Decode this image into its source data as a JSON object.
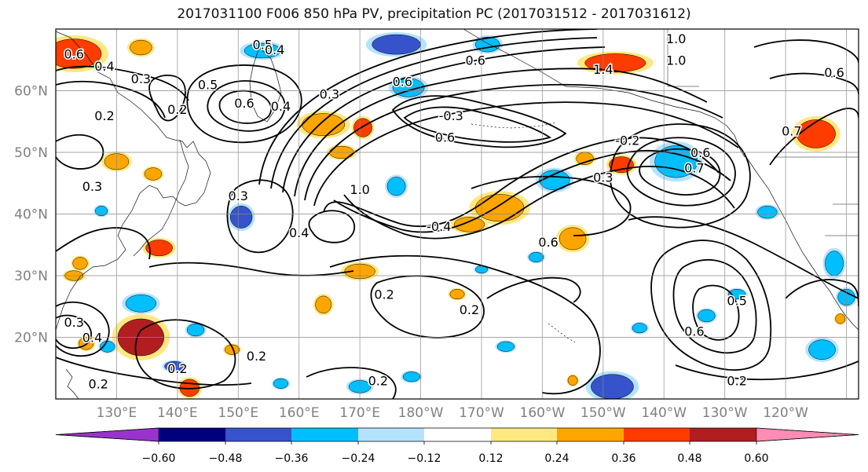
{
  "title": "2017031100 F006 850 hPa PV, precipitation PC (2017031512 - 2017031612)",
  "map": {
    "lat_labels": [
      "60°N",
      "50°N",
      "40°N",
      "30°N",
      "20°N"
    ],
    "lat_values": [
      60,
      50,
      40,
      30,
      20
    ],
    "lon_labels": [
      "130°E",
      "140°E",
      "150°E",
      "160°E",
      "170°E",
      "180°W",
      "170°W",
      "160°W",
      "150°W",
      "140°W",
      "130°W",
      "120°W"
    ],
    "lon_values": [
      130,
      140,
      150,
      160,
      170,
      180,
      190,
      200,
      210,
      220,
      230,
      240
    ],
    "extent": {
      "lon_min": 120,
      "lon_max": 252,
      "lat_min": 10,
      "lat_max": 70
    },
    "contour_labels": [
      {
        "text": "0.6",
        "lon": 123,
        "lat": 66
      },
      {
        "text": "0.4",
        "lon": 128,
        "lat": 64
      },
      {
        "text": "0.3",
        "lon": 134,
        "lat": 62
      },
      {
        "text": "0.5",
        "lon": 154,
        "lat": 67.5
      },
      {
        "text": "0.4",
        "lon": 156,
        "lat": 66.7
      },
      {
        "text": "0.5",
        "lon": 145,
        "lat": 61
      },
      {
        "text": "0.2",
        "lon": 140,
        "lat": 57
      },
      {
        "text": "0.2",
        "lon": 128,
        "lat": 56
      },
      {
        "text": "0.6",
        "lon": 151,
        "lat": 58
      },
      {
        "text": "0.4",
        "lon": 157,
        "lat": 57.5
      },
      {
        "text": "0.3",
        "lon": 165,
        "lat": 59.5
      },
      {
        "text": "0.6",
        "lon": 177,
        "lat": 61.5
      },
      {
        "text": "-0.3",
        "lon": 185,
        "lat": 56
      },
      {
        "text": "0.6",
        "lon": 184,
        "lat": 52.5
      },
      {
        "text": "0.6",
        "lon": 189,
        "lat": 65
      },
      {
        "text": "-0.2",
        "lon": 214,
        "lat": 52
      },
      {
        "text": "1.4",
        "lon": 210,
        "lat": 63.5
      },
      {
        "text": "1.0",
        "lon": 222,
        "lat": 68.5
      },
      {
        "text": "1.0",
        "lon": 222,
        "lat": 65
      },
      {
        "text": "0.6",
        "lon": 226,
        "lat": 50
      },
      {
        "text": "0.7",
        "lon": 225,
        "lat": 47.5
      },
      {
        "text": "0.3",
        "lon": 210,
        "lat": 46
      },
      {
        "text": "0.7",
        "lon": 241,
        "lat": 53.5
      },
      {
        "text": "0.6",
        "lon": 248,
        "lat": 63
      },
      {
        "text": "0.3",
        "lon": 126,
        "lat": 44.5
      },
      {
        "text": "0.3",
        "lon": 150,
        "lat": 43
      },
      {
        "text": "1.0",
        "lon": 170,
        "lat": 44
      },
      {
        "text": "0.4",
        "lon": 160,
        "lat": 37
      },
      {
        "text": "-0.4",
        "lon": 183,
        "lat": 38
      },
      {
        "text": "0.6",
        "lon": 201,
        "lat": 35.5
      },
      {
        "text": "0.3",
        "lon": 123,
        "lat": 22.5
      },
      {
        "text": "0.4",
        "lon": 126,
        "lat": 20
      },
      {
        "text": "0.2",
        "lon": 140,
        "lat": 15
      },
      {
        "text": "0.2",
        "lon": 127,
        "lat": 12.5
      },
      {
        "text": "0.2",
        "lon": 153,
        "lat": 17
      },
      {
        "text": "0.2",
        "lon": 174,
        "lat": 27
      },
      {
        "text": "0.2",
        "lon": 188,
        "lat": 24.5
      },
      {
        "text": "0.2",
        "lon": 173,
        "lat": 13
      },
      {
        "text": "0.5",
        "lon": 232,
        "lat": 26
      },
      {
        "text": "0.6",
        "lon": 225,
        "lat": 21
      },
      {
        "text": "0.2",
        "lon": 232,
        "lat": 13
      }
    ],
    "shaded_regions": [
      {
        "lon": 123,
        "lat": 66,
        "rx": 4.5,
        "ry": 2.4,
        "value": 0.45
      },
      {
        "lon": 134,
        "lat": 67,
        "rx": 1.8,
        "ry": 1.2,
        "value": 0.3
      },
      {
        "lon": 154,
        "lat": 66.5,
        "rx": 3,
        "ry": 1.2,
        "value": -0.3
      },
      {
        "lon": 176,
        "lat": 67.5,
        "rx": 4,
        "ry": 1.6,
        "value": -0.4
      },
      {
        "lon": 178,
        "lat": 60.5,
        "rx": 2.6,
        "ry": 1.5,
        "value": -0.3
      },
      {
        "lon": 191,
        "lat": 67.5,
        "rx": 2,
        "ry": 1.2,
        "value": -0.3
      },
      {
        "lon": 212,
        "lat": 64.5,
        "rx": 5,
        "ry": 1.5,
        "value": 0.4
      },
      {
        "lon": 164,
        "lat": 54.5,
        "rx": 3.5,
        "ry": 1.8,
        "value": 0.35
      },
      {
        "lon": 170.5,
        "lat": 54,
        "rx": 1.5,
        "ry": 1.5,
        "value": 0.4
      },
      {
        "lon": 222,
        "lat": 48.5,
        "rx": 3.5,
        "ry": 2.6,
        "value": -0.3
      },
      {
        "lon": 213,
        "lat": 48,
        "rx": 2,
        "ry": 1.3,
        "value": 0.45
      },
      {
        "lon": 202,
        "lat": 45.5,
        "rx": 2.5,
        "ry": 1.6,
        "value": -0.3
      },
      {
        "lon": 193,
        "lat": 41,
        "rx": 4,
        "ry": 2.2,
        "value": 0.35
      },
      {
        "lon": 188,
        "lat": 38.3,
        "rx": 2.5,
        "ry": 1.2,
        "value": 0.35
      },
      {
        "lon": 205,
        "lat": 36,
        "rx": 2.2,
        "ry": 1.8,
        "value": 0.35
      },
      {
        "lon": 150.5,
        "lat": 39.5,
        "rx": 1.8,
        "ry": 1.8,
        "value": -0.4
      },
      {
        "lon": 176,
        "lat": 44.5,
        "rx": 1.5,
        "ry": 1.5,
        "value": -0.3
      },
      {
        "lon": 207,
        "lat": 49,
        "rx": 1.4,
        "ry": 1,
        "value": 0.3
      },
      {
        "lon": 130,
        "lat": 48.5,
        "rx": 2,
        "ry": 1.3,
        "value": 0.3
      },
      {
        "lon": 136,
        "lat": 46.5,
        "rx": 1.4,
        "ry": 1,
        "value": 0.3
      },
      {
        "lon": 137,
        "lat": 34.5,
        "rx": 2.2,
        "ry": 1.3,
        "value": 0.4
      },
      {
        "lon": 124,
        "lat": 32,
        "rx": 1.2,
        "ry": 1,
        "value": 0.3
      },
      {
        "lon": 123,
        "lat": 30,
        "rx": 1.5,
        "ry": 0.8,
        "value": 0.3
      },
      {
        "lon": 170,
        "lat": 30.7,
        "rx": 2.5,
        "ry": 1.2,
        "value": 0.35
      },
      {
        "lon": 164,
        "lat": 25.3,
        "rx": 1.3,
        "ry": 1.4,
        "value": 0.35
      },
      {
        "lon": 134,
        "lat": 20,
        "rx": 3.8,
        "ry": 3,
        "value": 0.5
      },
      {
        "lon": 134,
        "lat": 25.5,
        "rx": 2.5,
        "ry": 1.4,
        "value": -0.3
      },
      {
        "lon": 143,
        "lat": 21.2,
        "rx": 1.4,
        "ry": 1,
        "value": -0.3
      },
      {
        "lon": 139.5,
        "lat": 15.3,
        "rx": 1.6,
        "ry": 0.8,
        "value": -0.4
      },
      {
        "lon": 149,
        "lat": 18,
        "rx": 1.2,
        "ry": 0.8,
        "value": 0.3
      },
      {
        "lon": 142,
        "lat": 11.8,
        "rx": 1.6,
        "ry": 1.4,
        "value": 0.4
      },
      {
        "lon": 125,
        "lat": 19,
        "rx": 1.2,
        "ry": 1,
        "value": 0.3
      },
      {
        "lon": 128.5,
        "lat": 18.5,
        "rx": 1.2,
        "ry": 0.9,
        "value": -0.3
      },
      {
        "lon": 127.5,
        "lat": 40.5,
        "rx": 1,
        "ry": 0.8,
        "value": -0.3
      },
      {
        "lon": 157,
        "lat": 12.5,
        "rx": 1.2,
        "ry": 0.8,
        "value": -0.3
      },
      {
        "lon": 170,
        "lat": 12,
        "rx": 1.8,
        "ry": 1,
        "value": -0.35
      },
      {
        "lon": 178.5,
        "lat": 13.6,
        "rx": 1.4,
        "ry": 0.8,
        "value": -0.3
      },
      {
        "lon": 186,
        "lat": 27,
        "rx": 1.2,
        "ry": 0.8,
        "value": 0.3
      },
      {
        "lon": 194,
        "lat": 18.5,
        "rx": 1.4,
        "ry": 0.8,
        "value": -0.3
      },
      {
        "lon": 205,
        "lat": 13,
        "rx": 0.8,
        "ry": 0.8,
        "value": 0.3
      },
      {
        "lon": 211.5,
        "lat": 12,
        "rx": 3.5,
        "ry": 2,
        "value": -0.4
      },
      {
        "lon": 216,
        "lat": 21.5,
        "rx": 1.2,
        "ry": 0.8,
        "value": -0.3
      },
      {
        "lon": 227,
        "lat": 23.5,
        "rx": 1.4,
        "ry": 1,
        "value": -0.3
      },
      {
        "lon": 246,
        "lat": 18,
        "rx": 2.2,
        "ry": 1.6,
        "value": -0.3
      },
      {
        "lon": 237,
        "lat": 40.3,
        "rx": 1.6,
        "ry": 1,
        "value": -0.3
      },
      {
        "lon": 248,
        "lat": 32,
        "rx": 1.5,
        "ry": 2,
        "value": -0.35
      },
      {
        "lon": 250,
        "lat": 26.5,
        "rx": 1.4,
        "ry": 1.3,
        "value": -0.3
      },
      {
        "lon": 245,
        "lat": 53,
        "rx": 3.2,
        "ry": 2.3,
        "value": 0.4
      },
      {
        "lon": 232,
        "lat": 27,
        "rx": 1.4,
        "ry": 0.8,
        "value": -0.3
      },
      {
        "lon": 249,
        "lat": 23,
        "rx": 0.8,
        "ry": 0.8,
        "value": 0.3
      },
      {
        "lon": 167,
        "lat": 50,
        "rx": 2,
        "ry": 1,
        "value": 0.3
      },
      {
        "lon": 199,
        "lat": 33,
        "rx": 1.2,
        "ry": 0.8,
        "value": -0.3
      },
      {
        "lon": 190,
        "lat": 31,
        "rx": 1,
        "ry": 0.6,
        "value": -0.3
      }
    ]
  },
  "colorbar": {
    "colors": [
      "#9a33cc",
      "#00007f",
      "#3653cc",
      "#00bfff",
      "#b4e3ff",
      "#ffffff",
      "#ffe880",
      "#ffa500",
      "#ff3c00",
      "#b01e20",
      "#ff8cb4"
    ],
    "tick_labels": [
      "−0.60",
      "−0.48",
      "−0.36",
      "−0.24",
      "−0.12",
      "0.12",
      "0.24",
      "0.36",
      "0.48",
      "0.60"
    ],
    "levels": [
      -0.6,
      -0.48,
      -0.36,
      -0.24,
      -0.12,
      0.12,
      0.24,
      0.36,
      0.48,
      0.6
    ]
  }
}
